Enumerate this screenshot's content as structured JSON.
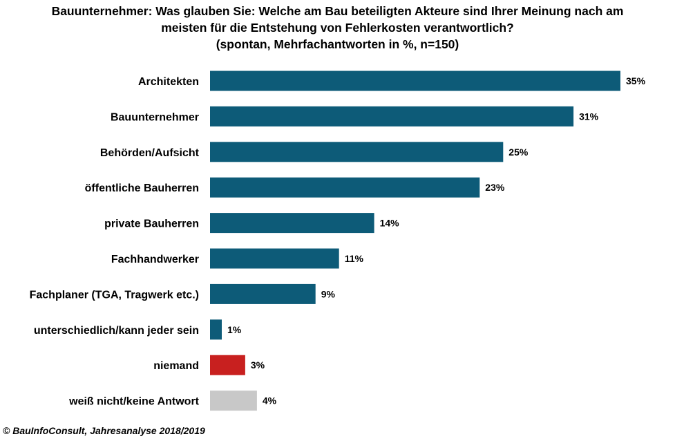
{
  "title": {
    "line1": "Bauunternehmer:  Was glauben  Sie: Welche am Bau beteiligten  Akteure sind Ihrer Meinung  nach am",
    "line2": "meisten  für die Entstehung  von Fehlerkosten  verantwortlich?",
    "line3": "(spontan,  Mehrfachantworten  in %, n=150)"
  },
  "source": "© BauInfoConsult,  Jahresanalyse 2018/2019",
  "colors": {
    "primary": "#0d5b78",
    "niemand": "#c8201f",
    "unknown": "#c8c8c8"
  },
  "chart_data": {
    "type": "bar",
    "orientation": "horizontal",
    "categories": [
      "Architekten",
      "Bauunternehmer",
      "Behörden/Aufsicht",
      "öffentliche Bauherren",
      "private Bauherren",
      "Fachhandwerker",
      "Fachplaner (TGA, Tragwerk etc.)",
      "unterschiedlich/kann jeder sein",
      "niemand",
      "weiß nicht/keine Antwort"
    ],
    "values": [
      35,
      31,
      25,
      23,
      14,
      11,
      9,
      1,
      3,
      4
    ],
    "value_labels": [
      "35%",
      "31%",
      "25%",
      "23%",
      "14%",
      "11%",
      "9%",
      "1%",
      "3%",
      "4%"
    ],
    "bar_colors": [
      "#0d5b78",
      "#0d5b78",
      "#0d5b78",
      "#0d5b78",
      "#0d5b78",
      "#0d5b78",
      "#0d5b78",
      "#0d5b78",
      "#c8201f",
      "#c8c8c8"
    ],
    "xlim": [
      0,
      35
    ],
    "grid": false,
    "legend": "none"
  }
}
